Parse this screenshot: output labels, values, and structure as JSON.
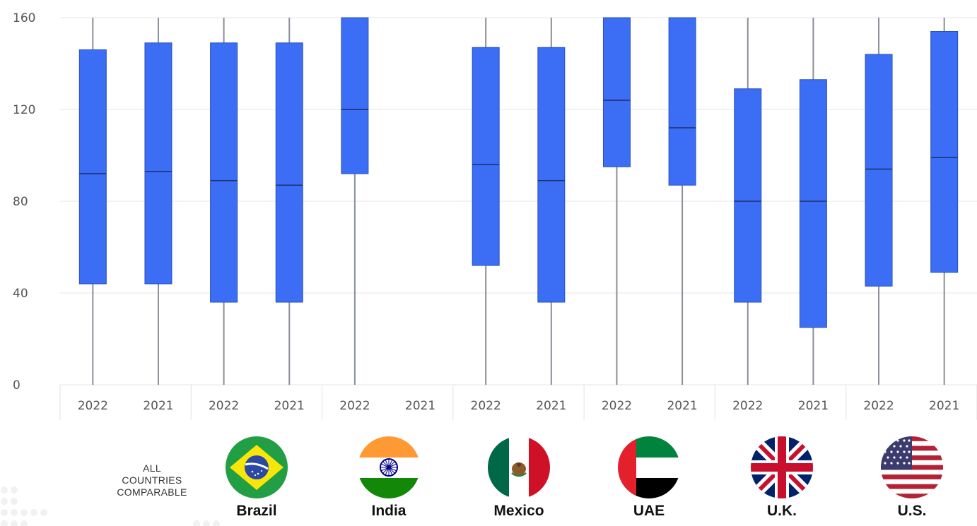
{
  "chart_data": {
    "type": "boxplot",
    "title": "",
    "xlabel": "",
    "ylabel": "",
    "ylim": [
      0,
      160
    ],
    "yticks": [
      "0",
      "40",
      "80",
      "120",
      "160"
    ],
    "grid": true,
    "box_color": "#3B6EF5",
    "whisker_color": "#8A8F98",
    "grid_color": "#E6E6E6",
    "groups": [
      {
        "name": "Brazil",
        "years": [
          {
            "label": "2022",
            "min": 0,
            "q1": 44,
            "median": 92,
            "q3": 146,
            "max": 160
          },
          {
            "label": "2021",
            "min": 0,
            "q1": 44,
            "median": 93,
            "q3": 149,
            "max": 160
          }
        ]
      },
      {
        "name": "India",
        "years": [
          {
            "label": "2022",
            "min": 0,
            "q1": 36,
            "median": 89,
            "q3": 149,
            "max": 160
          },
          {
            "label": "2021",
            "min": 0,
            "q1": 36,
            "median": 87,
            "q3": 149,
            "max": 160
          }
        ]
      },
      {
        "name": "Mexico",
        "years": [
          {
            "label": "2022",
            "min": 0,
            "q1": 92,
            "median": 120,
            "q3": 160,
            "max": 160
          },
          {
            "label": "2021",
            "min": null,
            "q1": null,
            "median": null,
            "q3": null,
            "max": null
          }
        ]
      },
      {
        "name": "UAE",
        "years": [
          {
            "label": "2022",
            "min": 0,
            "q1": 52,
            "median": 96,
            "q3": 147,
            "max": 160
          },
          {
            "label": "2021",
            "min": 0,
            "q1": 36,
            "median": 89,
            "q3": 147,
            "max": 160
          }
        ]
      },
      {
        "name": "U.K.",
        "years": [
          {
            "label": "2022",
            "min": 0,
            "q1": 95,
            "median": 124,
            "q3": 160,
            "max": 160
          },
          {
            "label": "2021",
            "min": 0,
            "q1": 87,
            "median": 112,
            "q3": 160,
            "max": 160
          }
        ]
      },
      {
        "name": "U.S.",
        "years": [
          {
            "label": "2022",
            "min": 0,
            "q1": 36,
            "median": 80,
            "q3": 129,
            "max": 160
          },
          {
            "label": "2021",
            "min": 0,
            "q1": 25,
            "median": 80,
            "q3": 133,
            "max": 160
          }
        ]
      },
      {
        "name": "",
        "years": [
          {
            "label": "2022",
            "min": 0,
            "q1": 43,
            "median": 94,
            "q3": 144,
            "max": 160
          },
          {
            "label": "2021",
            "min": 0,
            "q1": 49,
            "median": 99,
            "q3": 154,
            "max": 160
          }
        ]
      }
    ]
  },
  "legend": {
    "all_countries": [
      "ALL",
      "COUNTRIES",
      "COMPARABLE"
    ],
    "countries": [
      {
        "name": "Brazil",
        "flag": "brazil-flag-icon"
      },
      {
        "name": "India",
        "flag": "india-flag-icon"
      },
      {
        "name": "Mexico",
        "flag": "mexico-flag-icon"
      },
      {
        "name": "UAE",
        "flag": "uae-flag-icon"
      },
      {
        "name": "U.K.",
        "flag": "uk-flag-icon"
      },
      {
        "name": "U.S.",
        "flag": "us-flag-icon"
      }
    ]
  }
}
